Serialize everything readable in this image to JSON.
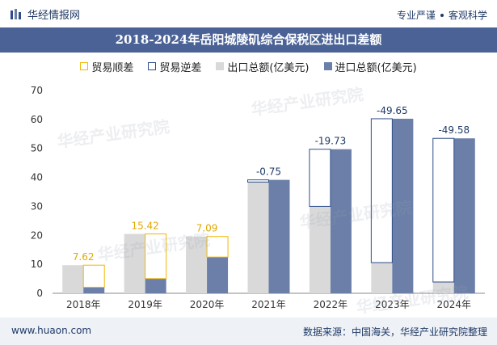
{
  "header": {
    "brand": "华经情报网",
    "slogan_left": "专业严谨",
    "slogan_right": "客观科学"
  },
  "title": "2018-2024年岳阳城陵矶综合保税区进出口差额",
  "footer": {
    "website": "www.huaon.com",
    "source": "数据来源：中国海关，华经产业研究院整理"
  },
  "colors": {
    "surplus": "#f2b705",
    "deficit": "#2e4d8a",
    "export": "#d9d9d9",
    "import": "#6b7fa8",
    "title_bg": "#4a6295"
  },
  "chart_data": {
    "type": "bar",
    "title": "2018-2024年岳阳城陵矶综合保税区进出口差额",
    "categories": [
      "2018年",
      "2019年",
      "2020年",
      "2021年",
      "2022年",
      "2023年",
      "2024年"
    ],
    "ylim": [
      0,
      70
    ],
    "yticks": [
      0,
      10,
      20,
      30,
      40,
      50,
      60,
      70
    ],
    "legend": [
      "贸易顺差",
      "贸易逆差",
      "出口总额(亿美元)",
      "进口总额(亿美元)"
    ],
    "series": [
      {
        "name": "出口总额(亿美元)",
        "values": [
          9.7,
          20.5,
          19.6,
          38.4,
          30.0,
          10.6,
          3.9
        ]
      },
      {
        "name": "进口总额(亿美元)",
        "values": [
          2.08,
          5.08,
          12.51,
          39.15,
          49.73,
          60.25,
          53.48
        ]
      }
    ],
    "balance": [
      7.62,
      15.42,
      7.09,
      -0.75,
      -19.73,
      -49.65,
      -49.58
    ],
    "balance_labels": [
      "7.62",
      "15.42",
      "7.09",
      "-0.75",
      "-19.73",
      "-49.65",
      "-49.58"
    ]
  },
  "watermark": "华经产业研究院"
}
